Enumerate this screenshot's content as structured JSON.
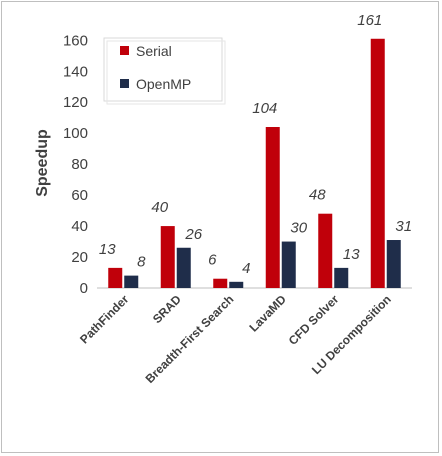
{
  "chart_data": {
    "type": "bar",
    "ylabel": "Speedup",
    "xlabel": "",
    "ylim": [
      0,
      170
    ],
    "yticks": [
      0,
      20,
      40,
      60,
      80,
      100,
      120,
      140,
      160
    ],
    "grid": false,
    "legend_position": "top-left",
    "categories": [
      "PathFinder",
      "SRAD",
      "Breadth-First Search",
      "LavaMD",
      "CFD Solver",
      "LU Decomposition"
    ],
    "series": [
      {
        "name": "Serial",
        "color": "#c0000a",
        "values": [
          13,
          40,
          6,
          104,
          48,
          161
        ]
      },
      {
        "name": "OpenMP",
        "color": "#1f2d4a",
        "values": [
          8,
          26,
          4,
          30,
          13,
          31
        ]
      }
    ]
  }
}
